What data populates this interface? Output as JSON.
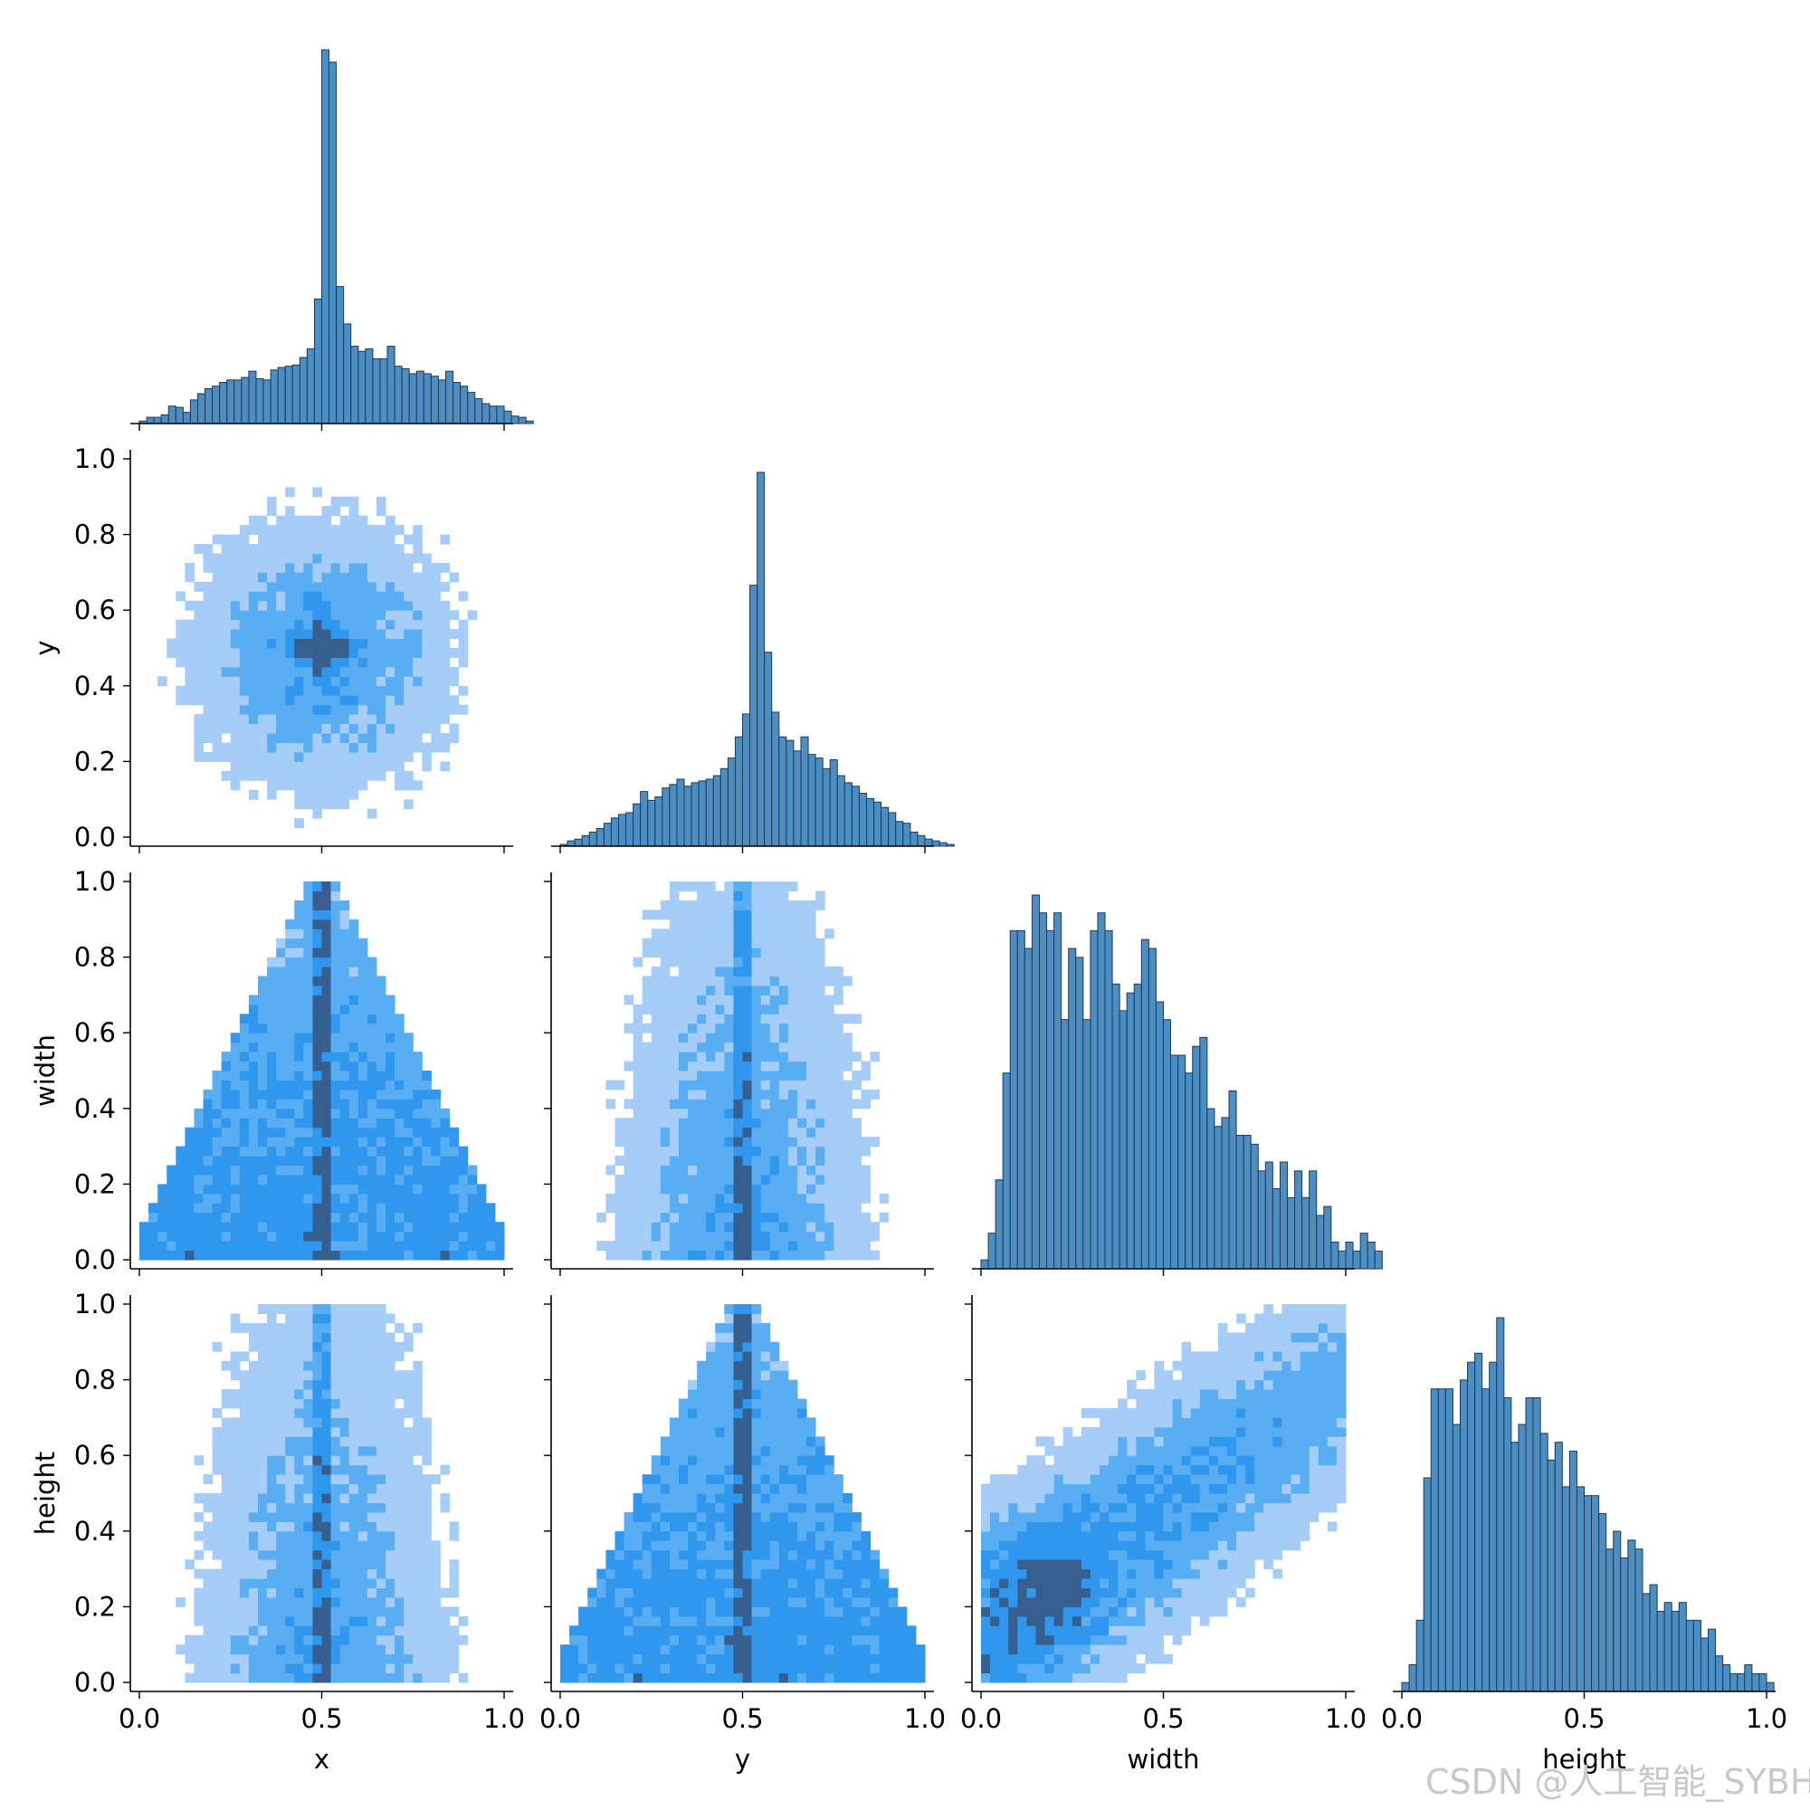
{
  "chart_data": {
    "type": "pairplot",
    "variables": [
      "x",
      "y",
      "width",
      "height"
    ],
    "axis_range": [
      0.0,
      1.0
    ],
    "x_tick_values": [
      0.0,
      0.5,
      1.0
    ],
    "x_tick_labels": [
      "0.0",
      "0.5",
      "1.0"
    ],
    "y_tick_values": [
      0.0,
      0.2,
      0.4,
      0.6,
      0.8,
      1.0
    ],
    "y_tick_labels": [
      "0.0",
      "0.2",
      "0.4",
      "0.6",
      "0.8",
      "1.0"
    ],
    "xlabels": [
      "x",
      "y",
      "width",
      "height"
    ],
    "ylabels": [
      "",
      "y",
      "width",
      "height"
    ],
    "colors": {
      "bar_fill": "#4c8ec2",
      "bar_edge": "#1f3a56",
      "heat_light": "#a6cdf7",
      "heat_mid": "#2f97ee",
      "heat_dark": "#365f8f"
    },
    "histograms": [
      {
        "variable": "x",
        "bin_start": 0.0,
        "bin_width": 0.02,
        "counts": [
          2,
          5,
          5,
          7,
          14,
          13,
          9,
          19,
          24,
          28,
          30,
          33,
          35,
          35,
          37,
          42,
          36,
          35,
          43,
          45,
          46,
          47,
          53,
          60,
          100,
          300,
          290,
          110,
          80,
          62,
          58,
          60,
          52,
          52,
          62,
          46,
          44,
          40,
          42,
          40,
          38,
          35,
          42,
          33,
          30,
          25,
          20,
          16,
          14,
          14,
          10,
          6,
          5,
          2,
          0
        ],
        "peak_heights_note": ""
      },
      {
        "variable": "y",
        "bin_start": 0.0,
        "bin_width": 0.02,
        "counts": [
          1,
          3,
          4,
          6,
          8,
          10,
          13,
          16,
          18,
          19,
          24,
          31,
          26,
          28,
          33,
          35,
          38,
          34,
          36,
          37,
          38,
          40,
          44,
          50,
          62,
          75,
          148,
          212,
          110,
          76,
          62,
          60,
          54,
          62,
          52,
          50,
          44,
          49,
          40,
          36,
          34,
          30,
          27,
          25,
          22,
          19,
          14,
          13,
          8,
          6,
          4,
          3,
          2,
          1,
          0
        ],
        "peak_heights_note": ""
      },
      {
        "variable": "width",
        "bin_start": 0.0,
        "bin_width": 0.02,
        "counts": [
          1,
          4,
          10,
          22,
          38,
          38,
          36,
          42,
          40,
          38,
          40,
          28,
          36,
          35,
          28,
          38,
          40,
          38,
          32,
          29,
          31,
          32,
          37,
          36,
          30,
          28,
          24,
          24,
          22,
          25,
          26,
          18,
          16,
          17,
          20,
          15,
          15,
          14,
          11,
          12,
          9,
          12,
          8,
          11,
          8,
          11,
          6,
          7,
          3,
          2,
          3,
          2,
          4,
          3,
          2,
          0
        ]
      },
      {
        "variable": "height",
        "bin_start": 0.0,
        "bin_width": 0.02,
        "counts": [
          1,
          3,
          8,
          24,
          34,
          34,
          34,
          30,
          35,
          37,
          38,
          34,
          37,
          42,
          33,
          28,
          30,
          33,
          33,
          29,
          26,
          28,
          23,
          27,
          23,
          22,
          22,
          20,
          16,
          18,
          15,
          17,
          16,
          11,
          12,
          9,
          10,
          9,
          10,
          8,
          8,
          6,
          7,
          4,
          3,
          2,
          2,
          3,
          2,
          2,
          1,
          0
        ]
      }
    ],
    "heatmap_bins": 40,
    "joint_pairs": [
      {
        "x": "x",
        "y": "y",
        "pattern": "central-peak"
      },
      {
        "x": "x",
        "y": "width",
        "pattern": "triangle"
      },
      {
        "x": "y",
        "y": "width",
        "pattern": "center-ridge"
      },
      {
        "x": "x",
        "y": "height",
        "pattern": "center-ridge"
      },
      {
        "x": "y",
        "y": "height",
        "pattern": "triangle"
      },
      {
        "x": "width",
        "y": "height",
        "pattern": "positive-correlation"
      }
    ]
  },
  "watermark": "CSDN @人工智能_SYBH"
}
